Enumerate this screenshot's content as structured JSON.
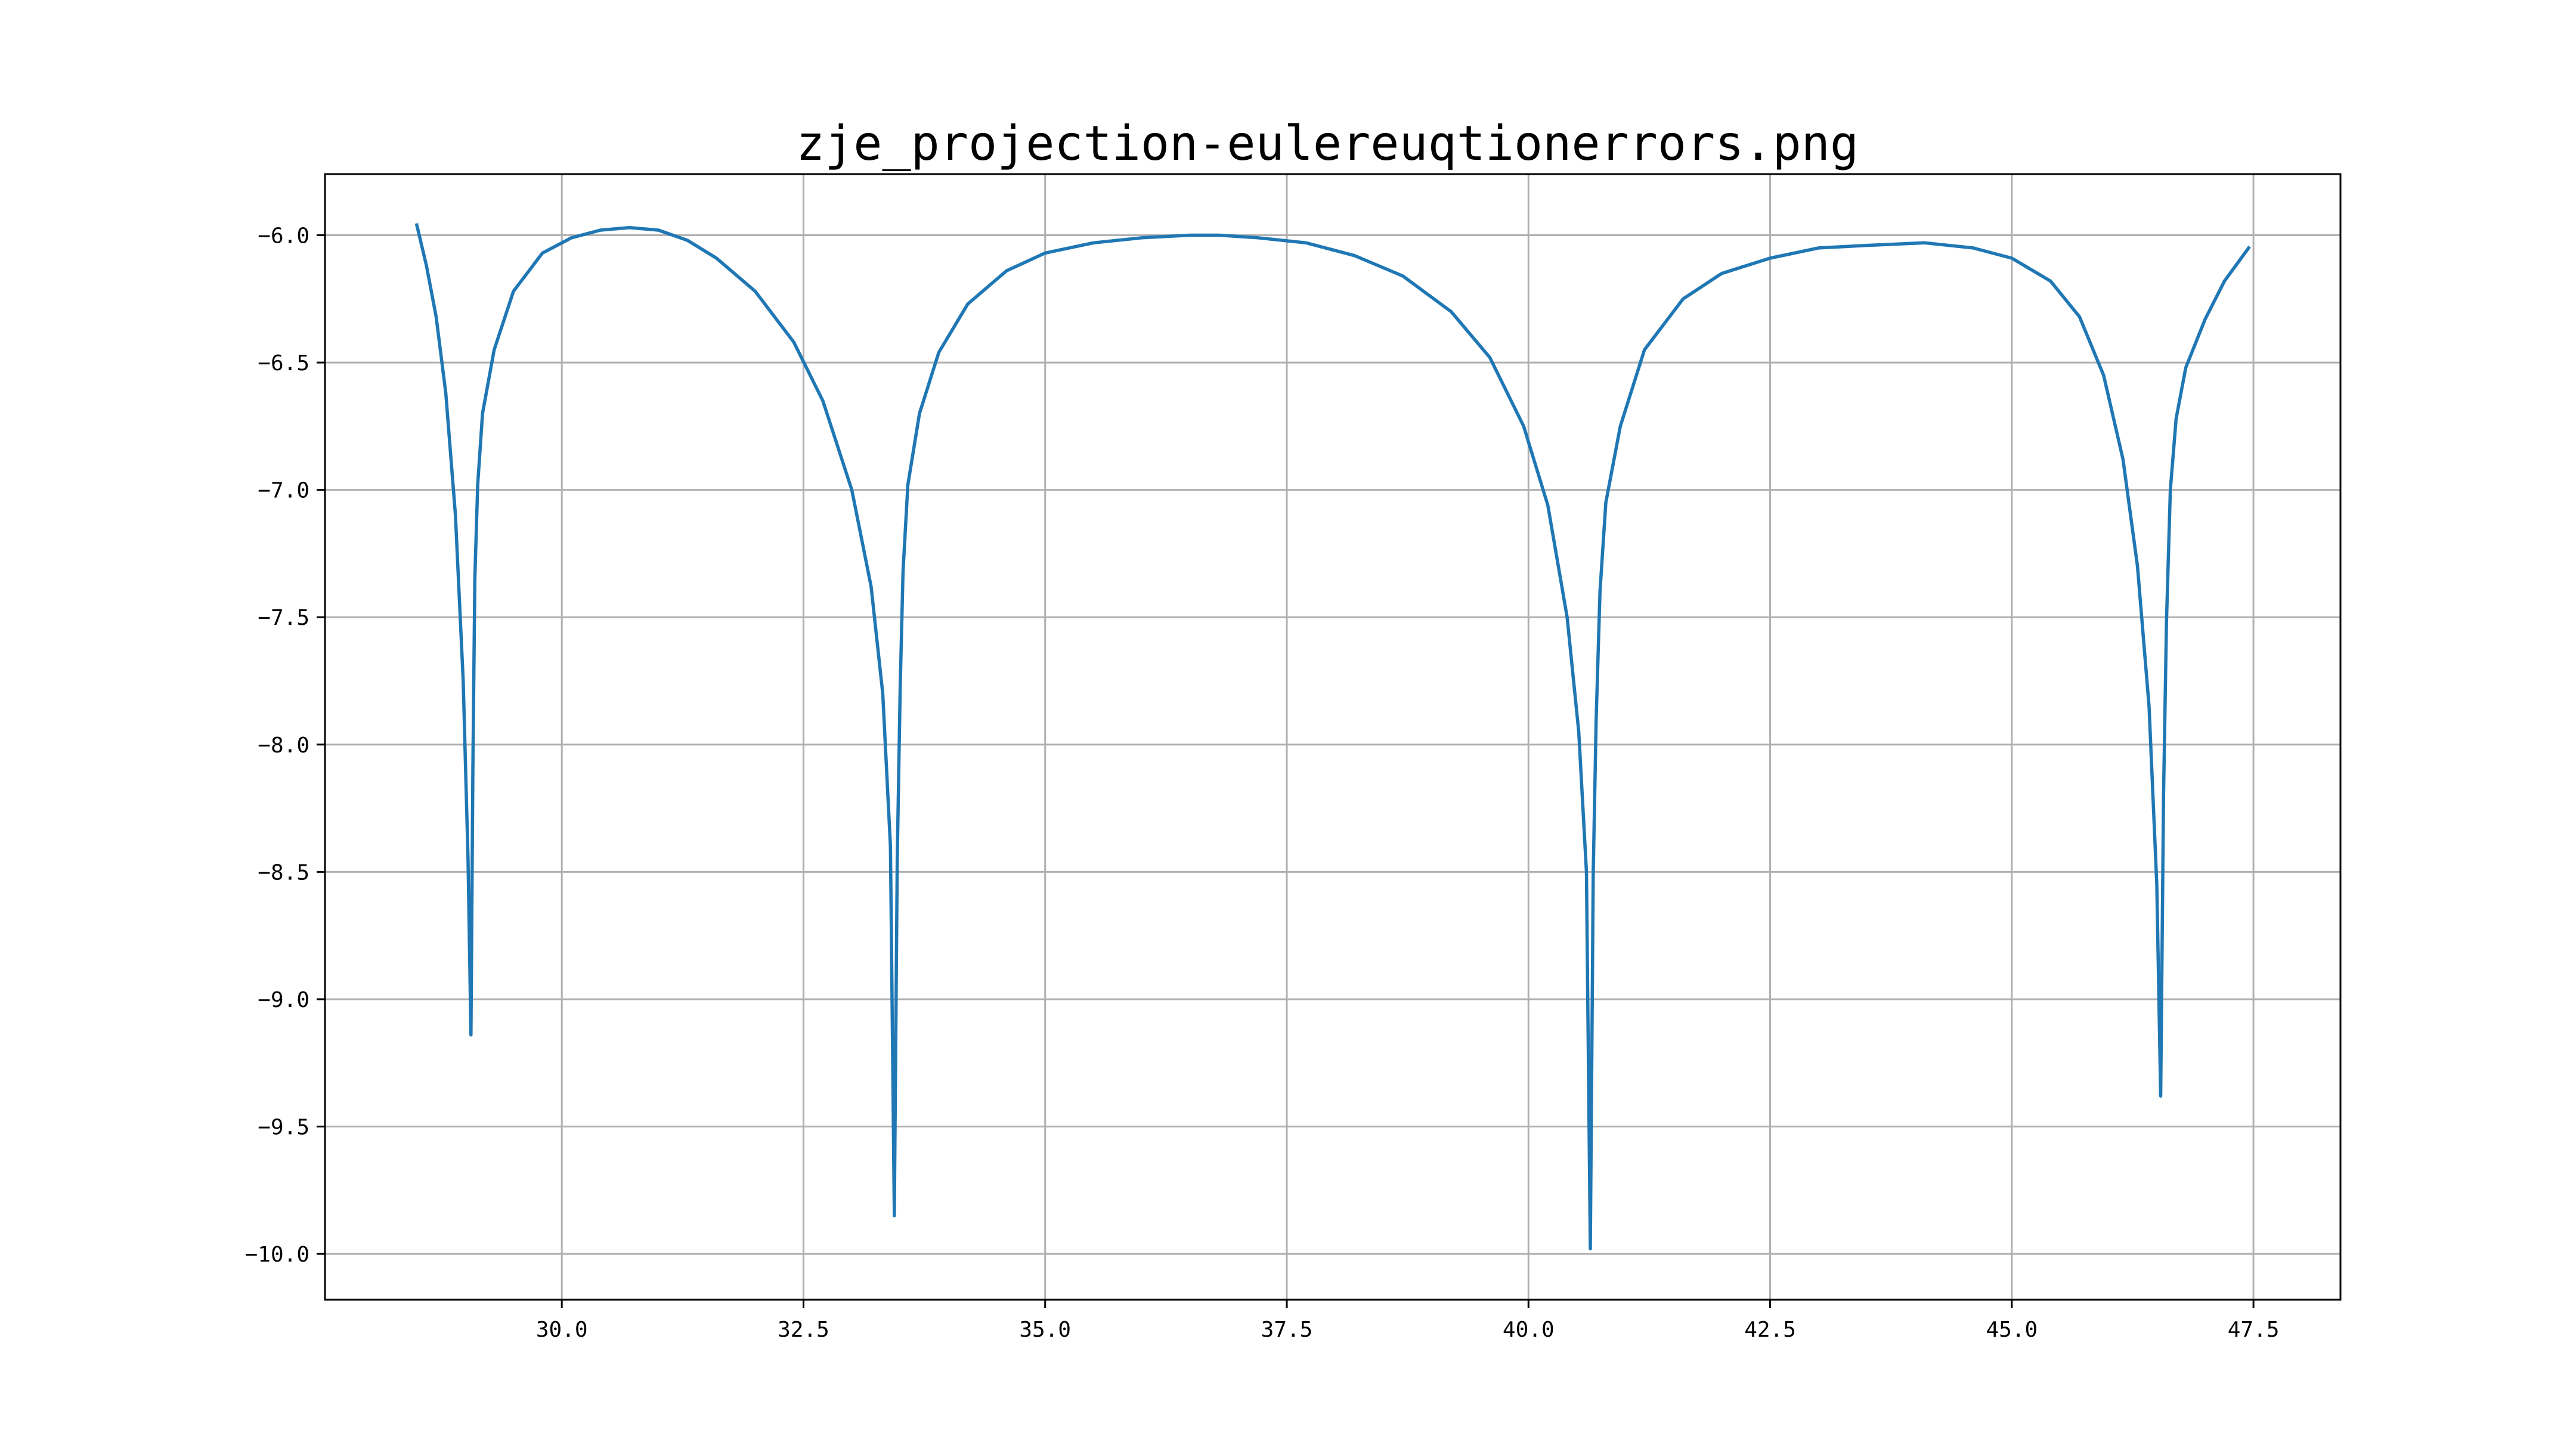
{
  "chart_data": {
    "type": "line",
    "title": "zje_projection-eulereuqtionerrors.png",
    "xlabel": "",
    "ylabel": "",
    "xlim": [
      27.55,
      48.4
    ],
    "ylim": [
      -10.18,
      -5.76
    ],
    "xticks": [
      30.0,
      32.5,
      35.0,
      37.5,
      40.0,
      42.5,
      45.0,
      47.5
    ],
    "xtick_labels": [
      "30.0",
      "32.5",
      "35.0",
      "37.5",
      "40.0",
      "42.5",
      "45.0",
      "47.5"
    ],
    "yticks": [
      -6.0,
      -6.5,
      -7.0,
      -7.5,
      -8.0,
      -8.5,
      -9.0,
      -9.5,
      -10.0
    ],
    "ytick_labels": [
      "−6.0",
      "−6.5",
      "−7.0",
      "−7.5",
      "−8.0",
      "−8.5",
      "−9.0",
      "−9.5",
      "−10.0"
    ],
    "grid": true,
    "legend": "none",
    "line_color": "#1f77b4",
    "series": [
      {
        "x": [
          28.5,
          28.6,
          28.7,
          28.8,
          28.9,
          28.98,
          29.03,
          29.06,
          29.08,
          29.1,
          29.13,
          29.18,
          29.3,
          29.5,
          29.8,
          30.1,
          30.4,
          30.7,
          31.0,
          31.3,
          31.6,
          32.0,
          32.4,
          32.7,
          33.0,
          33.2,
          33.32,
          33.4,
          33.44,
          33.47,
          33.5,
          33.53,
          33.58,
          33.7,
          33.9,
          34.2,
          34.6,
          35.0,
          35.5,
          36.0,
          36.5,
          36.8,
          37.2,
          37.7,
          38.2,
          38.7,
          39.2,
          39.6,
          39.95,
          40.2,
          40.4,
          40.52,
          40.6,
          40.64,
          40.67,
          40.7,
          40.74,
          40.8,
          40.95,
          41.2,
          41.6,
          42.0,
          42.5,
          43.0,
          43.5,
          44.1,
          44.6,
          45.0,
          45.4,
          45.7,
          45.95,
          46.15,
          46.3,
          46.42,
          46.5,
          46.54,
          46.57,
          46.6,
          46.64,
          46.7,
          46.8,
          47.0,
          47.2,
          47.45
        ],
        "y": [
          -5.96,
          -6.12,
          -6.32,
          -6.62,
          -7.1,
          -7.75,
          -8.45,
          -9.14,
          -8.1,
          -7.35,
          -6.98,
          -6.7,
          -6.45,
          -6.22,
          -6.07,
          -6.01,
          -5.98,
          -5.97,
          -5.98,
          -6.02,
          -6.09,
          -6.22,
          -6.42,
          -6.65,
          -7.0,
          -7.38,
          -7.8,
          -8.4,
          -9.85,
          -8.45,
          -7.78,
          -7.32,
          -6.98,
          -6.7,
          -6.46,
          -6.27,
          -6.14,
          -6.07,
          -6.03,
          -6.01,
          -6.0,
          -6.0,
          -6.01,
          -6.03,
          -6.08,
          -6.16,
          -6.3,
          -6.48,
          -6.75,
          -7.06,
          -7.5,
          -7.95,
          -8.5,
          -9.98,
          -8.5,
          -7.9,
          -7.4,
          -7.05,
          -6.75,
          -6.45,
          -6.25,
          -6.15,
          -6.09,
          -6.05,
          -6.04,
          -6.03,
          -6.05,
          -6.09,
          -6.18,
          -6.32,
          -6.55,
          -6.88,
          -7.3,
          -7.85,
          -8.55,
          -9.38,
          -8.2,
          -7.52,
          -7.0,
          -6.72,
          -6.52,
          -6.33,
          -6.18,
          -6.05
        ]
      }
    ]
  }
}
